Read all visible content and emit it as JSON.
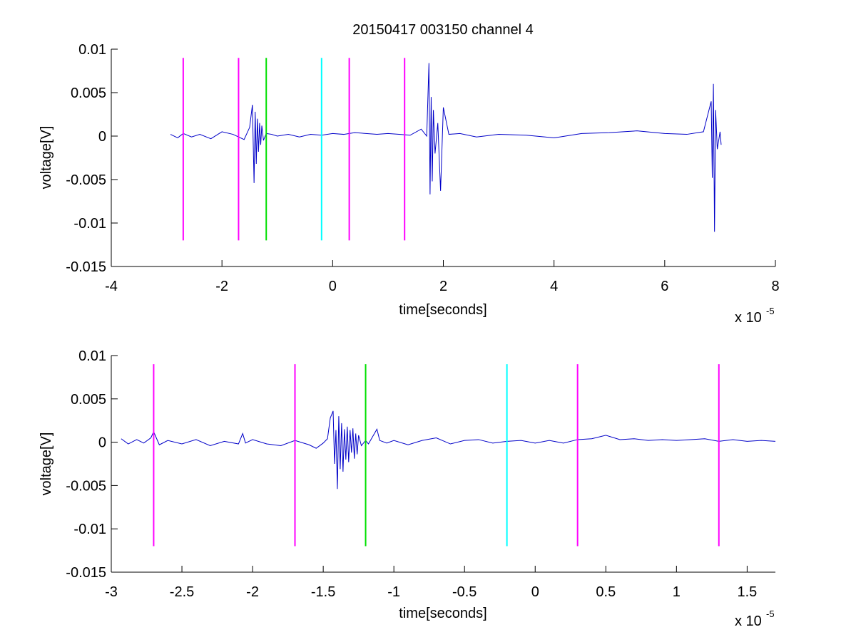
{
  "colors": {
    "signal": "#0000c8",
    "magenta": "#ff00ff",
    "green": "#00e000",
    "cyan": "#00ffff",
    "axis": "#000000"
  },
  "chart_data": [
    {
      "type": "line",
      "title": "20150417 003150 channel 4",
      "xlabel": "time[seconds]",
      "ylabel": "voltage[V]",
      "x_exponent_label": "x 10",
      "x_exponent_power": "-5",
      "x_scale": 1e-05,
      "xlim": [
        -4,
        8
      ],
      "ylim": [
        -0.015,
        0.01
      ],
      "xticks": [
        -4,
        -2,
        0,
        2,
        4,
        6,
        8
      ],
      "xtick_labels": [
        "-4",
        "-2",
        "0",
        "2",
        "4",
        "6",
        "8"
      ],
      "yticks": [
        -0.015,
        -0.01,
        -0.005,
        0,
        0.005,
        0.01
      ],
      "ytick_labels": [
        "-0.015",
        "-0.01",
        "-0.005",
        "0",
        "0.005",
        "0.01"
      ],
      "grid": false,
      "series": [
        {
          "color": "#0000c8",
          "x": [
            -2.93,
            -2.8,
            -2.7,
            -2.55,
            -2.4,
            -2.2,
            -2.0,
            -1.8,
            -1.6,
            -1.5,
            -1.45,
            -1.42,
            -1.4,
            -1.38,
            -1.36,
            -1.34,
            -1.32,
            -1.3,
            -1.28,
            -1.25,
            -1.2,
            -1.1,
            -1.0,
            -0.8,
            -0.6,
            -0.4,
            -0.2,
            0.0,
            0.2,
            0.4,
            0.6,
            0.8,
            1.0,
            1.2,
            1.4,
            1.6,
            1.7,
            1.74,
            1.76,
            1.78,
            1.8,
            1.82,
            1.85,
            1.9,
            1.95,
            2.0,
            2.1,
            2.3,
            2.6,
            3.0,
            3.5,
            4.0,
            4.5,
            5.0,
            5.5,
            6.0,
            6.4,
            6.7,
            6.84,
            6.86,
            6.88,
            6.9,
            6.92,
            6.95,
            7.0,
            7.02
          ],
          "y": [
            0.0002,
            -0.0002,
            0.0003,
            -0.0001,
            0.0002,
            -0.0003,
            0.0005,
            0.0002,
            -0.0004,
            0.001,
            0.0036,
            -0.0054,
            0.0028,
            -0.0032,
            0.002,
            -0.0018,
            0.0015,
            -0.001,
            0.0012,
            -0.0005,
            0.0003,
            0.0002,
            0.0,
            0.0002,
            -0.0001,
            0.0002,
            0.0001,
            0.0003,
            0.0002,
            0.0004,
            0.0003,
            0.0002,
            0.0003,
            0.0002,
            0.0001,
            0.0008,
            0.0,
            0.0084,
            -0.0067,
            0.0045,
            -0.0052,
            0.003,
            -0.002,
            0.0015,
            -0.0063,
            0.0033,
            0.0002,
            0.0003,
            -0.0001,
            0.0002,
            0.0001,
            -0.0002,
            0.0003,
            0.0004,
            0.0006,
            0.0003,
            0.0002,
            0.0005,
            0.004,
            -0.0048,
            0.006,
            -0.011,
            0.003,
            -0.0015,
            0.0005,
            -0.001
          ]
        }
      ],
      "vertical_markers": [
        {
          "x": -2.7,
          "color": "#ff00ff"
        },
        {
          "x": -1.7,
          "color": "#ff00ff"
        },
        {
          "x": -1.2,
          "color": "#00e000"
        },
        {
          "x": -0.2,
          "color": "#00ffff"
        },
        {
          "x": 0.3,
          "color": "#ff00ff"
        },
        {
          "x": 1.3,
          "color": "#ff00ff"
        }
      ],
      "marker_ylim": [
        -0.012,
        0.009
      ]
    },
    {
      "type": "line",
      "title": "",
      "xlabel": "time[seconds]",
      "ylabel": "voltage[V]",
      "x_exponent_label": "x 10",
      "x_exponent_power": "-5",
      "x_scale": 1e-05,
      "xlim": [
        -3.0,
        1.7
      ],
      "ylim": [
        -0.015,
        0.01
      ],
      "xticks": [
        -3,
        -2.5,
        -2,
        -1.5,
        -1,
        -0.5,
        0,
        0.5,
        1,
        1.5
      ],
      "xtick_labels": [
        "-3",
        "-2.5",
        "-2",
        "-1.5",
        "-1",
        "-0.5",
        "0",
        "0.5",
        "1",
        "1.5"
      ],
      "yticks": [
        -0.015,
        -0.01,
        -0.005,
        0,
        0.005,
        0.01
      ],
      "ytick_labels": [
        "-0.015",
        "-0.01",
        "-0.005",
        "0",
        "0.005",
        "0.01"
      ],
      "grid": false,
      "series": [
        {
          "color": "#0000c8",
          "x": [
            -2.93,
            -2.88,
            -2.82,
            -2.77,
            -2.72,
            -2.7,
            -2.66,
            -2.6,
            -2.5,
            -2.4,
            -2.3,
            -2.2,
            -2.1,
            -2.07,
            -2.05,
            -2.0,
            -1.9,
            -1.8,
            -1.7,
            -1.6,
            -1.55,
            -1.5,
            -1.47,
            -1.45,
            -1.43,
            -1.42,
            -1.41,
            -1.4,
            -1.39,
            -1.38,
            -1.37,
            -1.36,
            -1.35,
            -1.34,
            -1.33,
            -1.32,
            -1.31,
            -1.3,
            -1.29,
            -1.28,
            -1.27,
            -1.26,
            -1.25,
            -1.23,
            -1.2,
            -1.18,
            -1.12,
            -1.1,
            -1.05,
            -1.0,
            -0.9,
            -0.8,
            -0.7,
            -0.6,
            -0.5,
            -0.4,
            -0.3,
            -0.2,
            -0.1,
            0.0,
            0.1,
            0.2,
            0.3,
            0.4,
            0.5,
            0.6,
            0.7,
            0.8,
            0.9,
            1.0,
            1.1,
            1.2,
            1.3,
            1.4,
            1.5,
            1.6,
            1.7
          ],
          "y": [
            0.0004,
            -0.0002,
            0.0003,
            -0.0001,
            0.0005,
            0.0012,
            -0.0003,
            0.0002,
            -0.0002,
            0.0003,
            -0.0004,
            0.0001,
            -0.0002,
            0.001,
            -0.0001,
            0.0003,
            -0.0002,
            -0.0004,
            0.0002,
            -0.0003,
            -0.0007,
            -0.0001,
            0.0004,
            0.0028,
            0.0036,
            -0.0025,
            0.0014,
            -0.0054,
            0.003,
            -0.0031,
            0.0022,
            -0.0034,
            0.0015,
            -0.002,
            0.0018,
            -0.0023,
            0.0014,
            -0.0012,
            0.0016,
            -0.0019,
            0.001,
            -0.0014,
            0.0008,
            -0.0004,
            0.0002,
            -0.0002,
            0.0015,
            0.0002,
            -0.0001,
            0.0002,
            -0.0003,
            0.0002,
            0.0005,
            -0.0002,
            0.0002,
            0.0003,
            -0.0001,
            0.0001,
            0.0002,
            -0.0001,
            0.0002,
            -0.0001,
            0.0003,
            0.0004,
            0.0008,
            0.0003,
            0.0004,
            0.0002,
            0.0003,
            0.0002,
            0.0003,
            0.0004,
            0.0001,
            0.0003,
            0.0001,
            0.0002,
            0.0001
          ]
        }
      ],
      "vertical_markers": [
        {
          "x": -2.7,
          "color": "#ff00ff"
        },
        {
          "x": -1.7,
          "color": "#ff00ff"
        },
        {
          "x": -1.2,
          "color": "#00e000"
        },
        {
          "x": -0.2,
          "color": "#00ffff"
        },
        {
          "x": 0.3,
          "color": "#ff00ff"
        },
        {
          "x": 1.3,
          "color": "#ff00ff"
        }
      ],
      "marker_ylim": [
        -0.012,
        0.009
      ]
    }
  ]
}
